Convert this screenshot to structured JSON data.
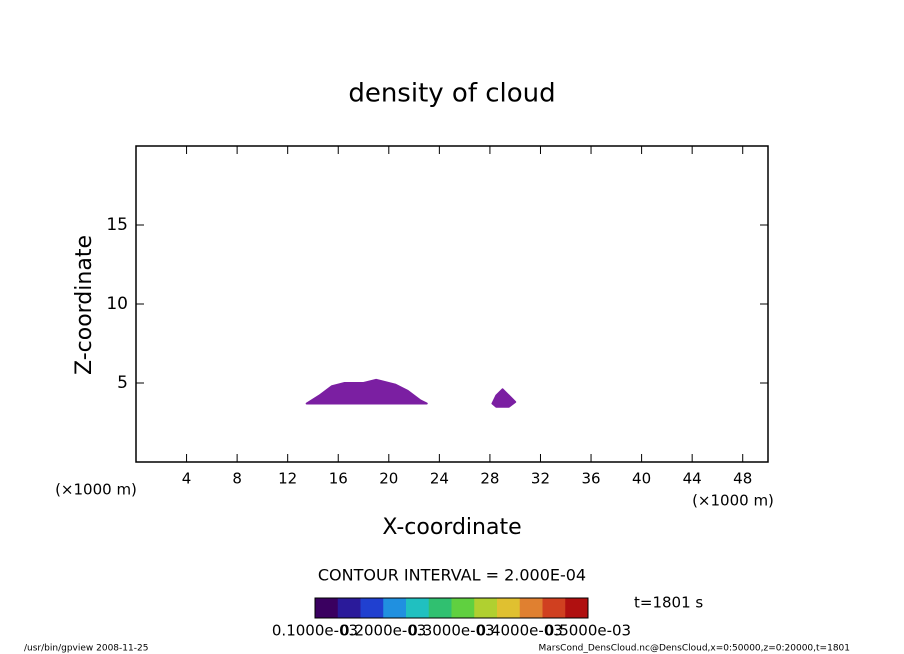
{
  "chart_data": {
    "type": "contour",
    "title": "density of cloud",
    "x_label": "X-coordinate",
    "y_label": "Z-coordinate",
    "x_unit": "(×1000 m)",
    "y_unit": "(×1000 m)",
    "xlim": [
      0,
      50
    ],
    "ylim": [
      0,
      20
    ],
    "xticks": [
      4,
      8,
      12,
      16,
      20,
      24,
      28,
      32,
      36,
      40,
      44,
      48
    ],
    "yticks": [
      5,
      10,
      15
    ],
    "regions": [
      {
        "x": [
          13.5,
          14.5,
          15.5,
          16.5,
          18,
          19,
          20.5,
          21.5,
          22.5,
          23
        ],
        "z": [
          3.7,
          4.2,
          4.8,
          5.0,
          5.0,
          5.2,
          4.9,
          4.5,
          3.9,
          3.7
        ],
        "color": "#7b1fa2"
      },
      {
        "x": [
          28.2,
          28.5,
          29,
          29.5,
          30,
          29.5,
          28.5
        ],
        "z": [
          3.7,
          4.2,
          4.6,
          4.2,
          3.8,
          3.5,
          3.5
        ],
        "color": "#7b1fa2"
      }
    ],
    "contour_interval": "CONTOUR INTERVAL = 2.000E-04",
    "time_label": "t=1801 s",
    "colorbar_colors": [
      "#3a0060",
      "#2a1a9a",
      "#2040d0",
      "#2090e0",
      "#20c0c0",
      "#30c070",
      "#60d040",
      "#b0d030",
      "#e0c030",
      "#e08030",
      "#d04020",
      "#b01010"
    ],
    "colorbar_labels": [
      "0.1000e-03",
      "0.2000e-03",
      "0.3000e-03",
      "0.4000e-03",
      "0.5000e-03"
    ],
    "footer_left": "/usr/bin/gpview  2008-11-25",
    "footer_right": "MarsCond_DensCloud.nc@DensCloud,x=0:50000,z=0:20000,t=1801"
  }
}
